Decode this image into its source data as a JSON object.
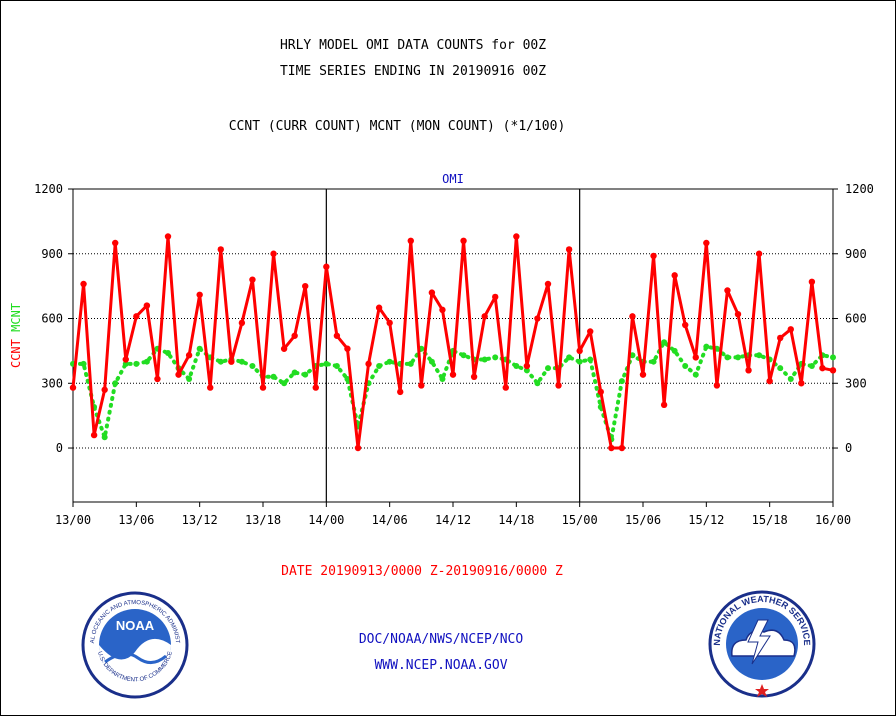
{
  "header": {
    "title_line1": "HRLY MODEL OMI DATA COUNTS for 00Z",
    "title_line2": "TIME SERIES ENDING IN 20190916 00Z",
    "subtitle": "CCNT (CURR COUNT) MCNT (MON COUNT) (*1/100)"
  },
  "date_range": "DATE 20190913/0000 Z-20190916/0000 Z",
  "footer": {
    "org_path": "DOC/NOAA/NWS/NCEP/NCO",
    "website": "WWW.NCEP.NOAA.GOV"
  },
  "logos": {
    "noaa": {
      "text": "NOAA",
      "ring_top": "NATIONAL OCEANIC AND ATMOSPHERIC ADMINISTRATION",
      "ring_bottom": "U.S. DEPARTMENT OF COMMERCE"
    },
    "nws": {
      "ring_text": "NATIONAL WEATHER SERVICE"
    }
  },
  "colors": {
    "ccnt": "#ff0000",
    "mcnt": "#22dd22",
    "title_blue": "#1010c0"
  },
  "chart_data": {
    "type": "line",
    "title": "OMI",
    "ylabel": "CCNT MCNT",
    "ylabel_parts": [
      {
        "text": "CCNT",
        "color": "#ff0000"
      },
      {
        "text": "MCNT",
        "color": "#22dd22"
      }
    ],
    "ylim": [
      -250,
      1200
    ],
    "yticks": [
      0,
      300,
      600,
      900,
      1200
    ],
    "xlim": [
      0,
      72
    ],
    "xticks": [
      {
        "x": 0,
        "label": "13/00"
      },
      {
        "x": 6,
        "label": "13/06"
      },
      {
        "x": 12,
        "label": "13/12"
      },
      {
        "x": 18,
        "label": "13/18"
      },
      {
        "x": 24,
        "label": "14/00"
      },
      {
        "x": 30,
        "label": "14/06"
      },
      {
        "x": 36,
        "label": "14/12"
      },
      {
        "x": 42,
        "label": "14/18"
      },
      {
        "x": 48,
        "label": "15/00"
      },
      {
        "x": 54,
        "label": "15/06"
      },
      {
        "x": 60,
        "label": "15/12"
      },
      {
        "x": 66,
        "label": "15/18"
      },
      {
        "x": 72,
        "label": "16/00"
      }
    ],
    "day_boundaries": [
      24,
      48
    ],
    "grid": true,
    "series": [
      {
        "name": "CCNT",
        "style": "line-markers",
        "values": [
          280,
          760,
          60,
          270,
          950,
          410,
          610,
          660,
          320,
          980,
          340,
          430,
          710,
          280,
          920,
          400,
          580,
          780,
          280,
          900,
          460,
          520,
          750,
          280,
          840,
          520,
          460,
          0,
          390,
          650,
          580,
          260,
          960,
          290,
          720,
          640,
          340,
          960,
          330,
          610,
          700,
          280,
          980,
          380,
          600,
          760,
          290,
          920,
          450,
          540,
          260,
          0,
          0,
          610,
          340,
          890,
          200,
          800,
          570,
          420,
          950,
          290,
          730,
          620,
          360,
          900,
          310,
          510,
          550,
          300,
          770,
          370,
          360
        ]
      },
      {
        "name": "MCNT",
        "style": "dotted-markers",
        "values": [
          390,
          390,
          190,
          50,
          300,
          390,
          390,
          400,
          460,
          440,
          370,
          320,
          460,
          420,
          400,
          410,
          400,
          380,
          330,
          330,
          300,
          350,
          340,
          380,
          390,
          380,
          320,
          100,
          300,
          380,
          400,
          390,
          390,
          460,
          400,
          320,
          450,
          430,
          410,
          410,
          420,
          410,
          380,
          360,
          300,
          370,
          370,
          420,
          400,
          410,
          190,
          40,
          310,
          430,
          400,
          400,
          490,
          450,
          380,
          340,
          470,
          460,
          420,
          420,
          430,
          430,
          410,
          370,
          320,
          390,
          380,
          430,
          420
        ]
      }
    ]
  }
}
